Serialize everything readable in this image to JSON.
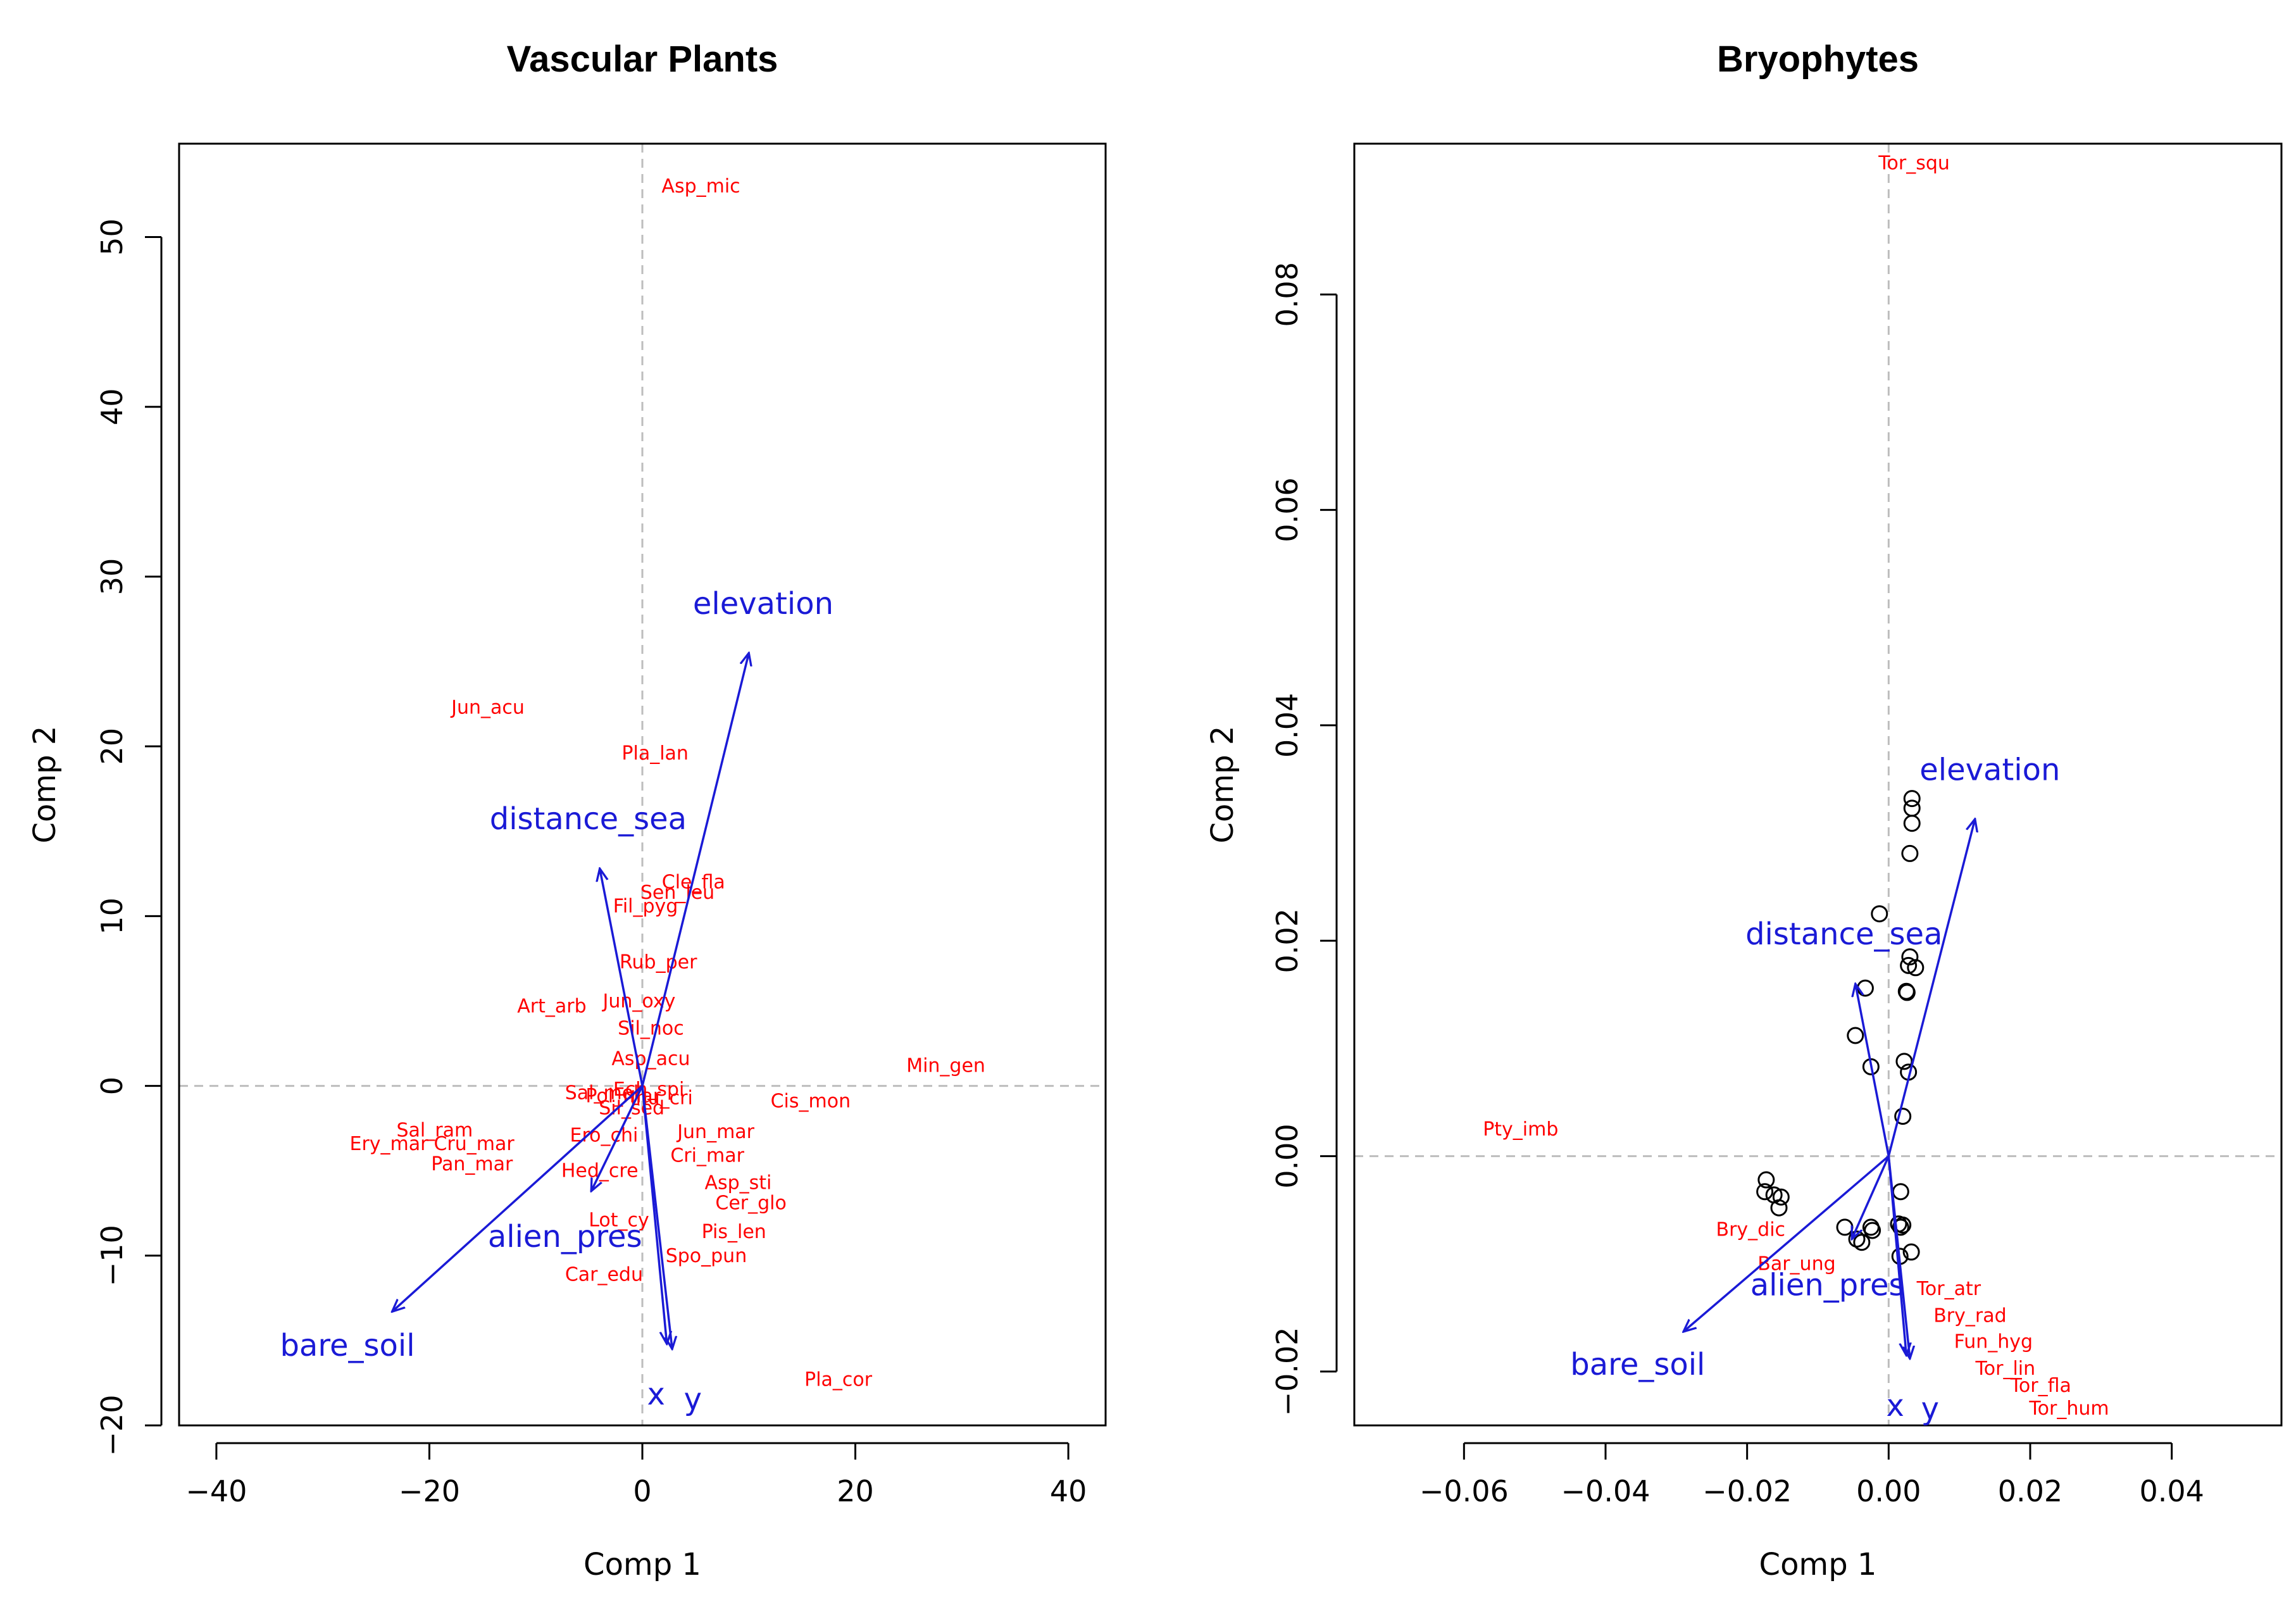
{
  "chart_data": [
    {
      "type": "scatter",
      "title": "Vascular Plants",
      "xlabel": "Comp 1",
      "ylabel": "Comp 2",
      "xlim": [
        -43.5,
        43.5
      ],
      "ylim": [
        -20,
        55.5
      ],
      "xticks": [
        -40,
        -20,
        0,
        20,
        40
      ],
      "yticks": [
        -20,
        -10,
        0,
        10,
        20,
        30,
        40,
        50
      ],
      "tick_labels_x": [
        "−40",
        "−20",
        "0",
        "20",
        "40"
      ],
      "tick_labels_y": [
        "−20",
        "−10",
        "0",
        "10",
        "20",
        "30",
        "40",
        "50"
      ],
      "zero_lines": true,
      "species": [
        {
          "label": "Asp_mic",
          "x": 5.5,
          "y": 53
        },
        {
          "label": "Jun_acu",
          "x": -14.5,
          "y": 22.3
        },
        {
          "label": "Pla_lan",
          "x": 1.2,
          "y": 19.6
        },
        {
          "label": "Cle_fla",
          "x": 4.8,
          "y": 12
        },
        {
          "label": "Sen_leu",
          "x": 3.3,
          "y": 11.4
        },
        {
          "label": "Fil_pyg",
          "x": 0.3,
          "y": 10.6
        },
        {
          "label": "Rub_per",
          "x": 1.5,
          "y": 7.3
        },
        {
          "label": "Art_arb",
          "x": -8.5,
          "y": 4.7
        },
        {
          "label": "Jun_oxy",
          "x": -0.3,
          "y": 5
        },
        {
          "label": "Sil_noc",
          "x": 0.8,
          "y": 3.4
        },
        {
          "label": "Asp_acu",
          "x": 0.8,
          "y": 1.6
        },
        {
          "label": "Min_gen",
          "x": 28.5,
          "y": 1.2
        },
        {
          "label": "Cis_mon",
          "x": 15.8,
          "y": -0.9
        },
        {
          "label": "Sal_ram",
          "x": -19.5,
          "y": -2.6
        },
        {
          "label": "Ery_mar",
          "x": -23.8,
          "y": -3.4
        },
        {
          "label": "Cru_mar",
          "x": -15.8,
          "y": -3.4
        },
        {
          "label": "Pan_mar",
          "x": -16,
          "y": -4.6
        },
        {
          "label": "Ero_chi",
          "x": -3.6,
          "y": -2.9
        },
        {
          "label": "Jun_mar",
          "x": 6.9,
          "y": -2.7
        },
        {
          "label": "Cri_mar",
          "x": 6.1,
          "y": -4.1
        },
        {
          "label": "Hed_cre",
          "x": -4,
          "y": -5
        },
        {
          "label": "Asp_sti",
          "x": 9,
          "y": -5.7
        },
        {
          "label": "Cer_glo",
          "x": 10.2,
          "y": -6.9
        },
        {
          "label": "Lot_cy",
          "x": -2.2,
          "y": -7.9
        },
        {
          "label": "Pis_len",
          "x": 8.6,
          "y": -8.6
        },
        {
          "label": "Spo_pun",
          "x": 6,
          "y": -10
        },
        {
          "label": "Car_edu",
          "x": -3.6,
          "y": -11.1
        },
        {
          "label": "Pla_cor",
          "x": 18.4,
          "y": -17.3
        },
        {
          "label": "Sal_mol",
          "x": -3.8,
          "y": -0.4
        },
        {
          "label": "Pol_mar",
          "x": -1.8,
          "y": -0.6
        },
        {
          "label": "Sil_sed",
          "x": -1,
          "y": -1.3
        },
        {
          "label": "Ech_spi",
          "x": 0.6,
          "y": -0.2
        },
        {
          "label": "Inu_cri",
          "x": 1.8,
          "y": -0.7
        }
      ],
      "vectors": [
        {
          "label": "elevation",
          "x": 10,
          "y": 25.5
        },
        {
          "label": "distance_sea",
          "x": -4,
          "y": 12.8
        },
        {
          "label": "alien_pres",
          "x": -4.8,
          "y": -6.2
        },
        {
          "label": "bare_soil",
          "x": -23.5,
          "y": -13.3
        },
        {
          "label": "x",
          "x": 2.3,
          "y": -15.2
        },
        {
          "label": "y",
          "x": 2.8,
          "y": -15.5
        }
      ]
    },
    {
      "type": "scatter",
      "title": "Bryophytes",
      "xlabel": "Comp 1",
      "ylabel": "Comp 2",
      "xlim": [
        -0.0755,
        0.0555
      ],
      "ylim": [
        -0.025,
        0.094
      ],
      "xticks": [
        -0.06,
        -0.04,
        -0.02,
        0.0,
        0.02,
        0.04
      ],
      "yticks": [
        -0.02,
        0.0,
        0.02,
        0.04,
        0.06,
        0.08
      ],
      "tick_labels_x": [
        "−0.06",
        "−0.04",
        "−0.02",
        "0.00",
        "0.02",
        "0.04"
      ],
      "tick_labels_y": [
        "−0.02",
        "0.00",
        "0.02",
        "0.04",
        "0.06",
        "0.08"
      ],
      "zero_lines": true,
      "species": [
        {
          "label": "Tor_squ",
          "x": 0.0036,
          "y": 0.0922
        },
        {
          "label": "Pty_imb",
          "x": -0.052,
          "y": 0.0025
        },
        {
          "label": "Bry_dic",
          "x": -0.0195,
          "y": -0.0068
        },
        {
          "label": "Bar_ung",
          "x": -0.013,
          "y": -0.01
        },
        {
          "label": "Tor_atr",
          "x": 0.0085,
          "y": -0.0123
        },
        {
          "label": "Bry_rad",
          "x": 0.0115,
          "y": -0.0148
        },
        {
          "label": "Fun_hyg",
          "x": 0.0148,
          "y": -0.0172
        },
        {
          "label": "Tor_lin",
          "x": 0.0165,
          "y": -0.0197
        },
        {
          "label": "Tor_fla",
          "x": 0.0215,
          "y": -0.0213
        },
        {
          "label": "Tor_hum",
          "x": 0.0255,
          "y": -0.0234
        }
      ],
      "sites": [
        {
          "x": 0.0033,
          "y": 0.0332
        },
        {
          "x": 0.0033,
          "y": 0.0323
        },
        {
          "x": 0.0033,
          "y": 0.0309
        },
        {
          "x": 0.003,
          "y": 0.0281
        },
        {
          "x": -0.0013,
          "y": 0.0225
        },
        {
          "x": 0.003,
          "y": 0.0185
        },
        {
          "x": 0.0028,
          "y": 0.0177
        },
        {
          "x": 0.0038,
          "y": 0.0175
        },
        {
          "x": 0.0025,
          "y": 0.0153
        },
        {
          "x": 0.0026,
          "y": 0.0152
        },
        {
          "x": -0.0033,
          "y": 0.0156
        },
        {
          "x": -0.0047,
          "y": 0.0112
        },
        {
          "x": -0.0025,
          "y": 0.0083
        },
        {
          "x": 0.0022,
          "y": 0.0088
        },
        {
          "x": 0.0028,
          "y": 0.0078
        },
        {
          "x": 0.002,
          "y": 0.0037
        },
        {
          "x": -0.0173,
          "y": -0.0022
        },
        {
          "x": -0.0175,
          "y": -0.0033
        },
        {
          "x": -0.0162,
          "y": -0.0036
        },
        {
          "x": -0.0152,
          "y": -0.0038
        },
        {
          "x": -0.0155,
          "y": -0.0048
        },
        {
          "x": -0.0062,
          "y": -0.0066
        },
        {
          "x": -0.0045,
          "y": -0.0077
        },
        {
          "x": -0.0038,
          "y": -0.008
        },
        {
          "x": -0.0025,
          "y": -0.0066
        },
        {
          "x": -0.0023,
          "y": -0.0069
        },
        {
          "x": 0.0014,
          "y": -0.0063
        },
        {
          "x": 0.0017,
          "y": -0.0066
        },
        {
          "x": 0.002,
          "y": -0.0064
        },
        {
          "x": 0.0017,
          "y": -0.0033
        },
        {
          "x": 0.0016,
          "y": -0.0093
        },
        {
          "x": 0.0032,
          "y": -0.0089
        }
      ],
      "vectors": [
        {
          "label": "elevation",
          "x": 0.0122,
          "y": 0.0313
        },
        {
          "label": "distance_sea",
          "x": -0.0047,
          "y": 0.016
        },
        {
          "label": "alien_pres",
          "x": -0.0052,
          "y": -0.0077
        },
        {
          "label": "bare_soil",
          "x": -0.029,
          "y": -0.0163
        },
        {
          "label": "x",
          "x": 0.0025,
          "y": -0.0185
        },
        {
          "label": "y",
          "x": 0.003,
          "y": -0.0188
        }
      ]
    }
  ]
}
